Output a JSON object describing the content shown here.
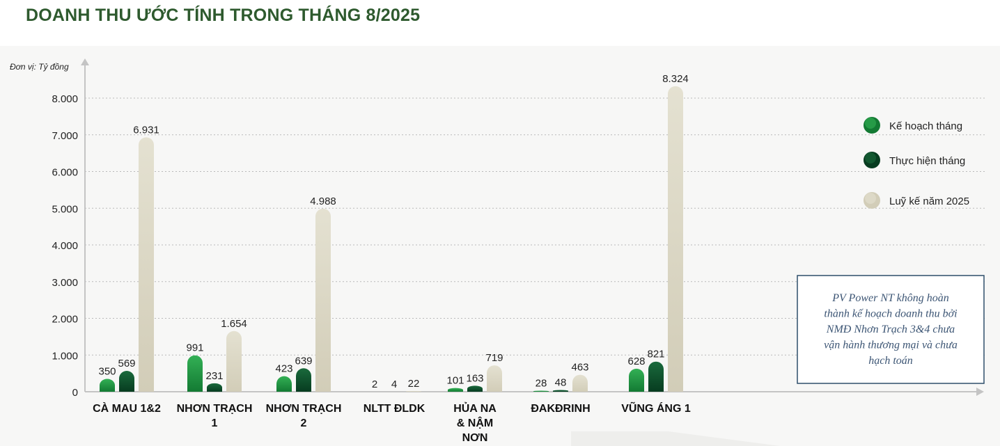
{
  "page": {
    "title": "DOANH THU ƯỚC TÍNH TRONG THÁNG 8/2025"
  },
  "chart_data": {
    "type": "bar",
    "unit_label": "Đơn vị: Tỷ đồng",
    "categories": [
      [
        "CÀ MAU 1&2"
      ],
      [
        "NHƠN TRẠCH",
        "1"
      ],
      [
        "NHƠN TRẠCH",
        "2"
      ],
      [
        "NLTT ĐLDK"
      ],
      [
        "HỦA NA",
        "& NẬM",
        "NƠN"
      ],
      [
        "ĐAKĐRINH"
      ],
      [
        "VŨNG ÁNG 1"
      ]
    ],
    "series": [
      {
        "name": "Kế hoạch tháng",
        "values": [
          350,
          991,
          423,
          2,
          101,
          28,
          628
        ],
        "labels": [
          "350",
          "991",
          "423",
          "2",
          "101",
          "28",
          "628"
        ],
        "color": "#1f8a3c"
      },
      {
        "name": "Thực hiện tháng",
        "values": [
          569,
          231,
          639,
          4,
          163,
          48,
          821
        ],
        "labels": [
          "569",
          "231",
          "639",
          "4",
          "163",
          "48",
          "821"
        ],
        "color": "#0d4d2b"
      },
      {
        "name": "Luỹ kế năm 2025",
        "values": [
          6931,
          1654,
          4988,
          22,
          719,
          463,
          8324
        ],
        "labels": [
          "6.931",
          "1.654",
          "4.988",
          "22",
          "719",
          "463",
          "8.324"
        ],
        "color": "#dcd8c6"
      }
    ],
    "y_ticks": [
      {
        "value": 0,
        "label": "0"
      },
      {
        "value": 1000,
        "label": "1.000"
      },
      {
        "value": 2000,
        "label": "2.000"
      },
      {
        "value": 3000,
        "label": "3.000"
      },
      {
        "value": 4000,
        "label": "4.000"
      },
      {
        "value": 5000,
        "label": "5.000"
      },
      {
        "value": 6000,
        "label": "6.000"
      },
      {
        "value": 7000,
        "label": "7.000"
      },
      {
        "value": 8000,
        "label": "8.000"
      }
    ],
    "ylim": [
      0,
      8000
    ],
    "grid": true,
    "legend_position": "right",
    "note": [
      "PV Power NT không hoàn",
      "thành kế hoạch doanh thu bởi",
      "NMĐ Nhơn Trạch 3&4 chưa",
      "vận hành thương mại và chưa",
      "hạch toán"
    ]
  }
}
